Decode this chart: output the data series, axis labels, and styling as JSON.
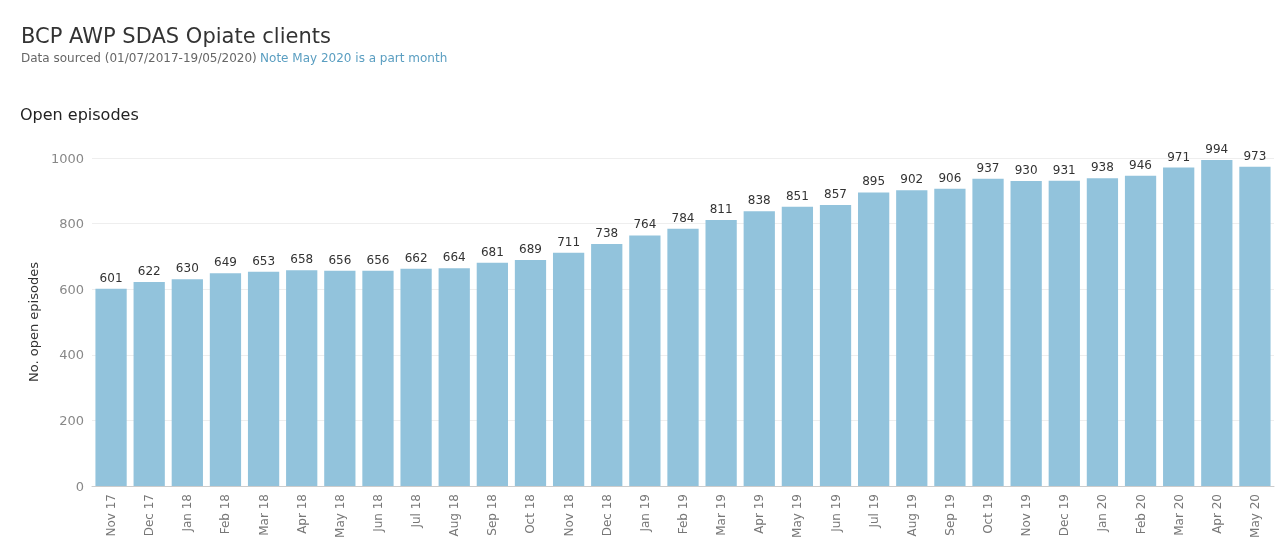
{
  "chart_data": {
    "type": "bar",
    "title": "BCP AWP SDAS Opiate clients",
    "subtitle": "Data sourced (01/07/2017-19/05/2020)",
    "annotations": [
      "Note May 2020 is a part month",
      "Open episodes"
    ],
    "ylabel": "No. open episodes",
    "categories": [
      "Nov 17",
      "Dec 17",
      "Jan 18",
      "Feb 18",
      "Mar 18",
      "Apr 18",
      "May 18",
      "Jun 18",
      "Jul 18",
      "Aug 18",
      "Sep 18",
      "Oct 18",
      "Nov 18",
      "Dec 18",
      "Jan 19",
      "Feb 19",
      "Mar 19",
      "Apr 19",
      "May 19",
      "Jun 19",
      "Jul 19",
      "Aug 19",
      "Sep 19",
      "Oct 19",
      "Nov 19",
      "Dec 19",
      "Jan 20",
      "Feb 20",
      "Mar 20",
      "Apr 20",
      "May 20"
    ],
    "values": [
      601,
      622,
      630,
      649,
      653,
      658,
      656,
      656,
      662,
      664,
      681,
      689,
      711,
      738,
      764,
      784,
      811,
      838,
      851,
      857,
      895,
      902,
      906,
      937,
      930,
      931,
      938,
      946,
      971,
      994,
      973
    ],
    "color": "#92c3dc",
    "ylim": [
      0,
      1000
    ],
    "yticks": [
      0,
      200,
      400,
      600,
      800,
      1000
    ],
    "grid": "y",
    "data_labels": true
  }
}
